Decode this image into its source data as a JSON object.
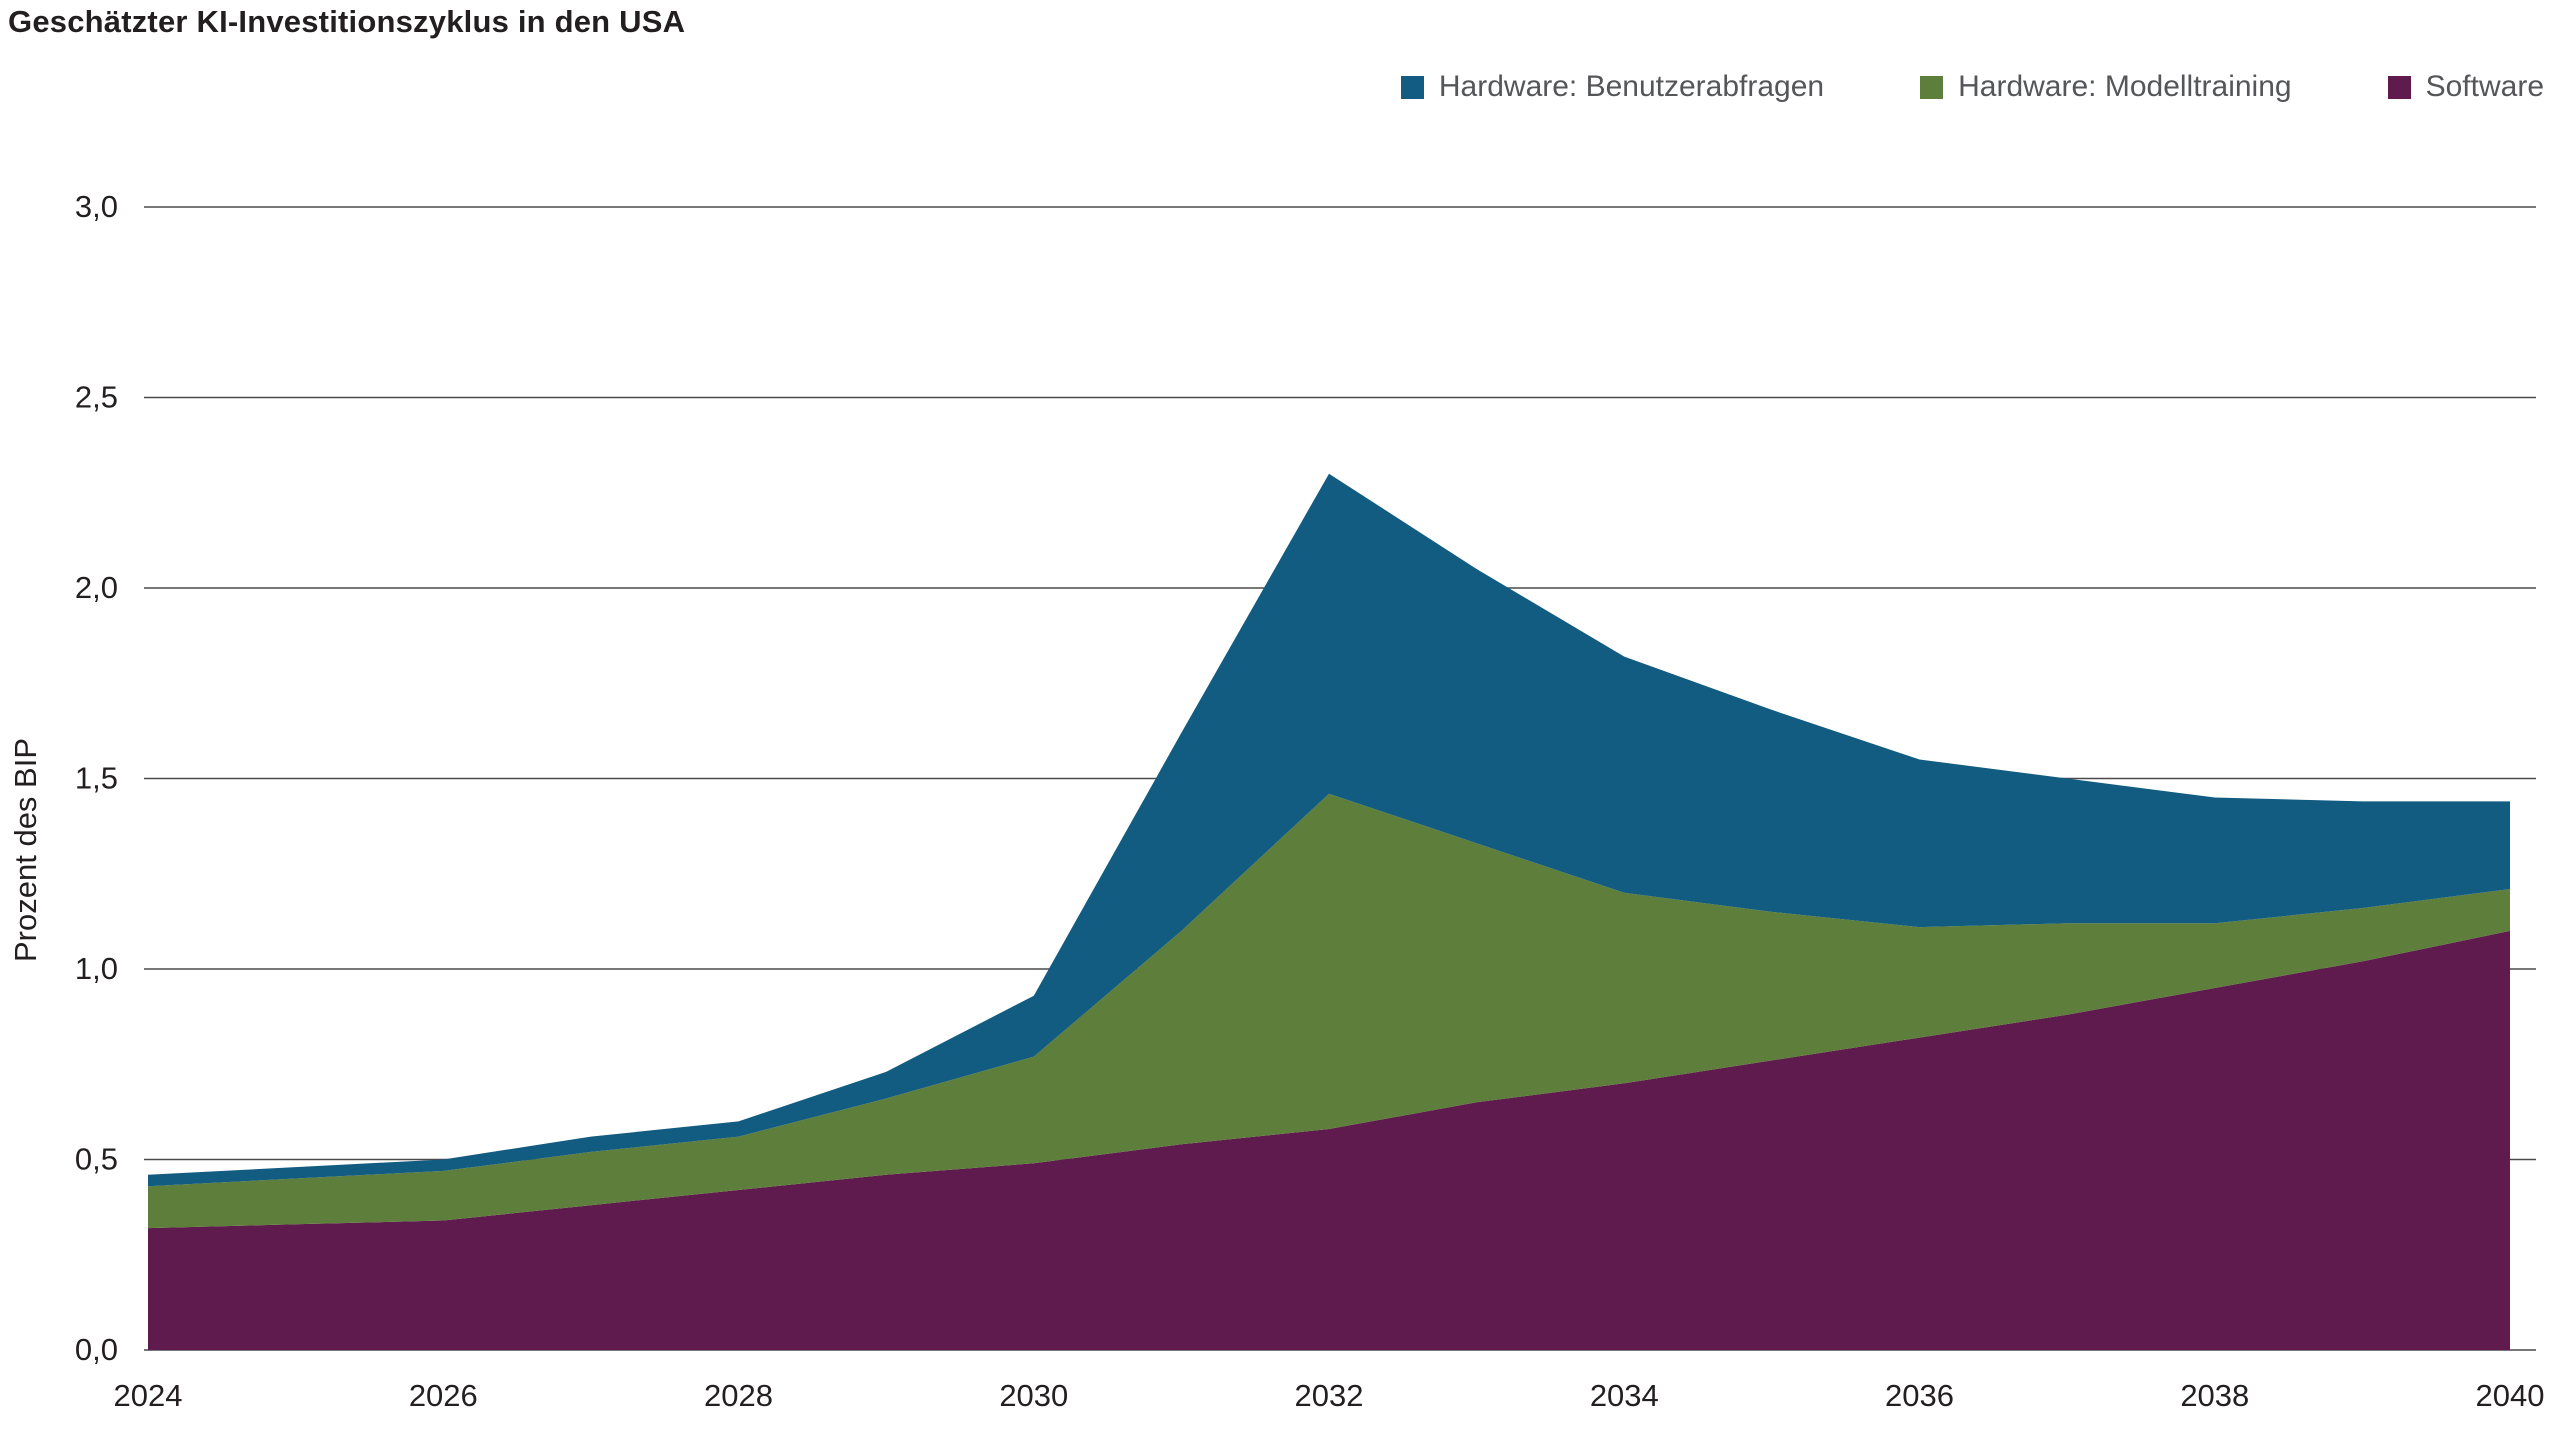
{
  "chart_data": {
    "type": "area",
    "stacked": true,
    "title": "Geschätzter KI-Investitionszyklus in den USA",
    "xlabel": "",
    "ylabel": "Prozent des BIP",
    "x": [
      2024,
      2025,
      2026,
      2027,
      2028,
      2029,
      2030,
      2031,
      2032,
      2033,
      2034,
      2035,
      2036,
      2037,
      2038,
      2039,
      2040
    ],
    "xtick_labels": [
      "2024",
      "2026",
      "2028",
      "2030",
      "2032",
      "2034",
      "2036",
      "2038",
      "2040"
    ],
    "ylim": [
      0,
      3.0
    ],
    "ytick_values": [
      0,
      0.5,
      1.0,
      1.5,
      2.0,
      2.5,
      3.0
    ],
    "ytick_labels": [
      "0,0",
      "0,5",
      "1,0",
      "1,5",
      "2,0",
      "2,5",
      "3,0"
    ],
    "grid": "horizontal",
    "legend_position": "top-right",
    "series_stacking": "bottom-to-top",
    "series": [
      {
        "name": "Software",
        "color": "#5f1b4d",
        "values": [
          0.32,
          0.33,
          0.34,
          0.38,
          0.42,
          0.46,
          0.49,
          0.54,
          0.58,
          0.65,
          0.7,
          0.76,
          0.82,
          0.88,
          0.95,
          1.02,
          1.1
        ]
      },
      {
        "name": "Hardware: Modelltraining",
        "color": "#5e7e3c",
        "values": [
          0.11,
          0.12,
          0.13,
          0.14,
          0.14,
          0.2,
          0.28,
          0.56,
          0.88,
          0.68,
          0.5,
          0.39,
          0.29,
          0.24,
          0.17,
          0.14,
          0.11
        ]
      },
      {
        "name": "Hardware: Benutzerabfragen",
        "color": "#115c80",
        "values": [
          0.03,
          0.03,
          0.03,
          0.04,
          0.04,
          0.07,
          0.16,
          0.52,
          0.84,
          0.72,
          0.62,
          0.53,
          0.44,
          0.38,
          0.33,
          0.28,
          0.23
        ]
      }
    ],
    "colors": {
      "text_dark": "#231f20",
      "legend_text": "#55565a",
      "gridline": "#4a4a4c",
      "background": "#ffffff"
    }
  }
}
